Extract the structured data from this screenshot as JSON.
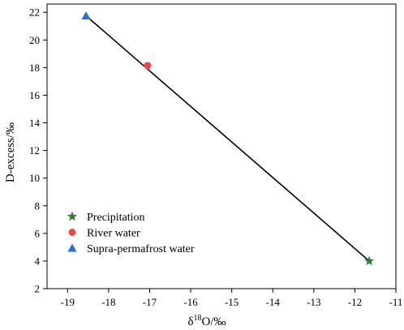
{
  "chart_data": {
    "type": "scatter",
    "title": "",
    "xlabel": {
      "prefix": "δ",
      "sup": "18",
      "suffix": "O/‰"
    },
    "ylabel": "D-excess/‰",
    "xlim": [
      -19.5,
      -11
    ],
    "ylim": [
      2,
      22.6
    ],
    "xticks": [
      -19,
      -18,
      -17,
      -16,
      -15,
      -14,
      -13,
      -12,
      -11
    ],
    "yticks": [
      2,
      4,
      6,
      8,
      10,
      12,
      14,
      16,
      18,
      20,
      22
    ],
    "xtick_labels": [
      "-19",
      "-18",
      "-17",
      "-16",
      "-15",
      "-14",
      "-13",
      "-12",
      "-11"
    ],
    "ytick_labels": [
      "2",
      "4",
      "6",
      "8",
      "10",
      "12",
      "14",
      "16",
      "18",
      "20",
      "22"
    ],
    "grid": false,
    "legend_position": "bottom-left",
    "series": [
      {
        "name": "Precipitation",
        "marker": "star",
        "color": "#2e7d32",
        "points": [
          {
            "x": -11.65,
            "y": 4.0
          }
        ]
      },
      {
        "name": "River water",
        "marker": "circle",
        "color": "#e8484a",
        "points": [
          {
            "x": -17.05,
            "y": 18.15
          }
        ]
      },
      {
        "name": "Supra-permafrost water",
        "marker": "triangle",
        "color": "#2a6fd6",
        "points": [
          {
            "x": -18.55,
            "y": 21.75
          }
        ]
      }
    ],
    "trend_line": {
      "from": {
        "x": -18.55,
        "y": 21.75
      },
      "to": {
        "x": -11.65,
        "y": 4.0
      },
      "color": "#000000"
    }
  }
}
